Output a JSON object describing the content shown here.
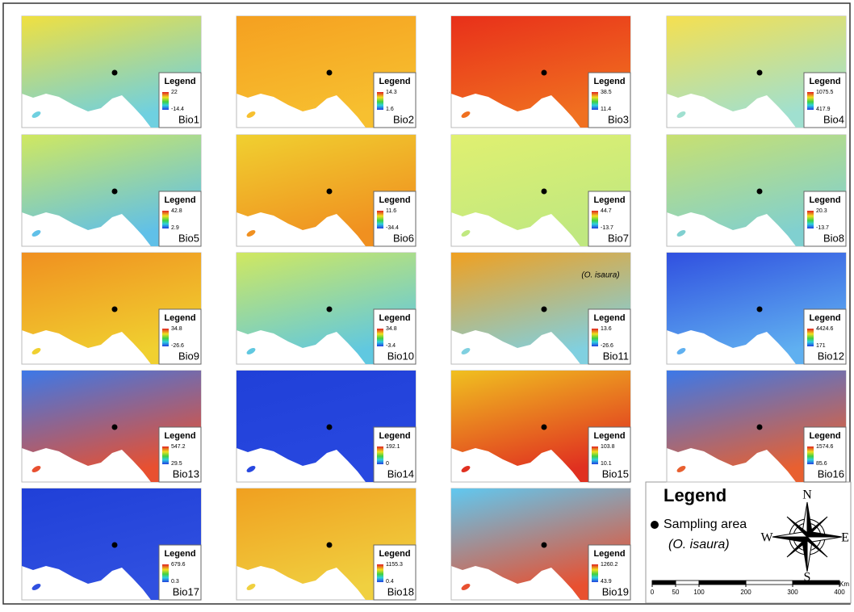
{
  "panels": [
    {
      "name": "Bio1",
      "legend": "Legend",
      "max": 22,
      "min": -14.4,
      "colors": [
        "#f0e040",
        "#6fd0e0"
      ]
    },
    {
      "name": "Bio2",
      "legend": "Legend",
      "max": 14.3,
      "min": 1.6,
      "colors": [
        "#f5a020",
        "#f7c030"
      ]
    },
    {
      "name": "Bio3",
      "legend": "Legend",
      "max": 38.5,
      "min": 11.4,
      "colors": [
        "#e8301a",
        "#f07020"
      ]
    },
    {
      "name": "Bio4",
      "legend": "Legend",
      "max": 1075.5,
      "min": 417.9,
      "colors": [
        "#f5e050",
        "#a0e0d0"
      ]
    },
    {
      "name": "Bio5",
      "legend": "Legend",
      "max": 42.8,
      "min": 2.9,
      "colors": [
        "#d0e860",
        "#60c0e8"
      ]
    },
    {
      "name": "Bio6",
      "legend": "Legend",
      "max": 11.6,
      "min": -34.4,
      "colors": [
        "#f0d030",
        "#f09020"
      ]
    },
    {
      "name": "Bio7",
      "legend": "Legend",
      "max": 44.7,
      "min": -13.7,
      "colors": [
        "#e0f070",
        "#c0e880"
      ]
    },
    {
      "name": "Bio8",
      "legend": "Legend",
      "max": 20.3,
      "min": -13.7,
      "colors": [
        "#c8e070",
        "#80d0d0"
      ]
    },
    {
      "name": "Bio9",
      "legend": "Legend",
      "max": 34.8,
      "min": -26.6,
      "colors": [
        "#f09020",
        "#f0d030"
      ]
    },
    {
      "name": "Bio10",
      "legend": "Legend",
      "max": 34.8,
      "min": -3.4,
      "colors": [
        "#d0e860",
        "#60c8e0"
      ]
    },
    {
      "name": "Bio11",
      "legend": "Legend",
      "max": 13.6,
      "min": -26.6,
      "colors": [
        "#f0a020",
        "#80d0e0"
      ],
      "annotation": "(O. isaura)"
    },
    {
      "name": "Bio12",
      "legend": "Legend",
      "max": 4424.6,
      "min": 171,
      "colors": [
        "#3050e0",
        "#60b0f0"
      ]
    },
    {
      "name": "Bio13",
      "legend": "Legend",
      "max": 547.2,
      "min": 29.5,
      "colors": [
        "#3c78e8",
        "#e85030"
      ]
    },
    {
      "name": "Bio14",
      "legend": "Legend",
      "max": 192.1,
      "min": 0,
      "colors": [
        "#2040d8",
        "#2848e0"
      ]
    },
    {
      "name": "Bio15",
      "legend": "Legend",
      "max": 103.8,
      "min": 10.1,
      "colors": [
        "#f0c020",
        "#e03020"
      ]
    },
    {
      "name": "Bio16",
      "legend": "Legend",
      "max": 1574.6,
      "min": 85.6,
      "colors": [
        "#3c78e8",
        "#e86030"
      ]
    },
    {
      "name": "Bio17",
      "legend": "Legend",
      "max": 679.6,
      "min": 0.3,
      "colors": [
        "#2040d8",
        "#3050e0"
      ]
    },
    {
      "name": "Bio18",
      "legend": "Legend",
      "max": 1155.3,
      "min": 0.4,
      "colors": [
        "#f0a020",
        "#f0d040"
      ]
    },
    {
      "name": "Bio19",
      "legend": "Legend",
      "max": 1260.2,
      "min": 43.9,
      "colors": [
        "#60c8f0",
        "#e85030"
      ]
    }
  ],
  "main_legend": {
    "title": "Legend",
    "item": "Sampling area",
    "species": "(O. isaura)"
  },
  "compass": {
    "north": "N",
    "south": "S",
    "east": "E",
    "west": "W"
  },
  "scale": {
    "unit": "Km",
    "ticks": [
      0,
      50,
      100,
      200,
      300,
      400
    ]
  }
}
